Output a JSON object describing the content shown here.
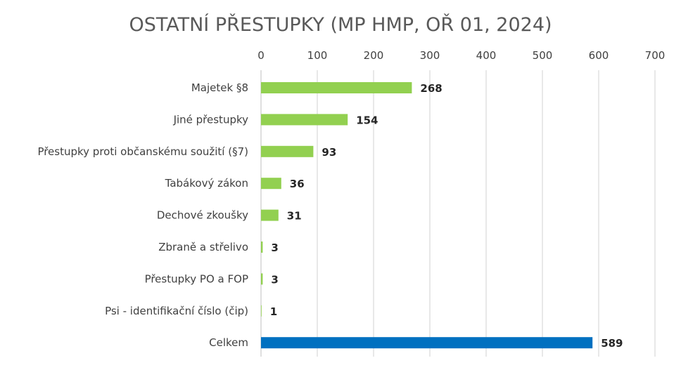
{
  "chart_data": {
    "type": "bar",
    "orientation": "horizontal",
    "title": "OSTATNÍ PŘESTUPKY (MP HMP, OŘ 01, 2024)",
    "xlabel": "",
    "ylabel": "",
    "xlim": [
      0,
      700
    ],
    "x_ticks": [
      0,
      100,
      200,
      300,
      400,
      500,
      600,
      700
    ],
    "x_axis_position": "top",
    "grid": true,
    "legend": "none",
    "categories": [
      "Majetek §8",
      "Jiné přestupky",
      "Přestupky proti občanskému soužití (§7)",
      "Tabákový zákon",
      "Dechové zkoušky",
      "Zbraně a střelivo",
      "Přestupky PO a FOP",
      "Psi - identifikační číslo (čip)",
      "Celkem"
    ],
    "values": [
      268,
      154,
      93,
      36,
      31,
      3,
      3,
      1,
      589
    ],
    "bar_colors": [
      "#92d050",
      "#92d050",
      "#92d050",
      "#92d050",
      "#92d050",
      "#92d050",
      "#92d050",
      "#92d050",
      "#0070c0"
    ]
  },
  "colors": {
    "title": "#595959",
    "tick_label": "#404040",
    "category_label": "#404040",
    "data_label": "#262626",
    "gridline": "#d0d0d0",
    "axis_line": "#bfbfbf"
  }
}
